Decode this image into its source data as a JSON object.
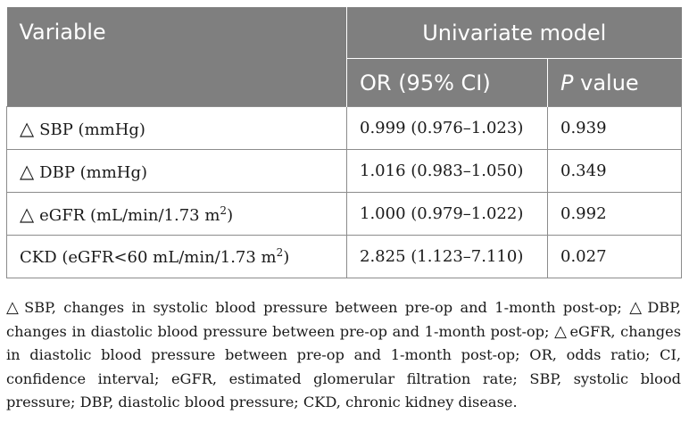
{
  "table": {
    "header_variable": "Variable",
    "header_group": "Univariate model",
    "header_or": "OR (95% CI)",
    "header_p_italic": "P",
    "header_p_rest": " value",
    "rows": [
      {
        "symbol": "△",
        "label": "SBP (mmHg)",
        "sup": "",
        "label_end": "",
        "or": "0.999 (0.976–1.023)",
        "p": "0.939"
      },
      {
        "symbol": "△",
        "label": "DBP (mmHg)",
        "sup": "",
        "label_end": "",
        "or": "1.016 (0.983–1.050)",
        "p": "0.349"
      },
      {
        "symbol": "△",
        "label": "eGFR (mL/min/1.73 m",
        "sup": "2",
        "label_end": ")",
        "or": "1.000 (0.979–1.022)",
        "p": "0.992"
      },
      {
        "symbol": "",
        "label": "CKD (eGFR<60 mL/min/1.73 m",
        "sup": "2",
        "label_end": ")",
        "or": "2.825 (1.123–7.110)",
        "p": "0.027"
      }
    ]
  },
  "footnote": {
    "part1": "SBP, changes in systolic blood pressure between pre-op and 1-month post-op;",
    "part2": "DBP, changes in diastolic blood pressure between pre-op and 1-month post-op;",
    "part3": "eGFR, changes in diastolic blood pressure between pre-op and 1-month post-op; OR, odds ratio; CI, confidence interval; eGFR, estimated glomerular filtration rate; SBP, systolic blood pressure; DBP, diastolic blood pressure; CKD, chronic kidney disease.",
    "symbol": "△"
  }
}
